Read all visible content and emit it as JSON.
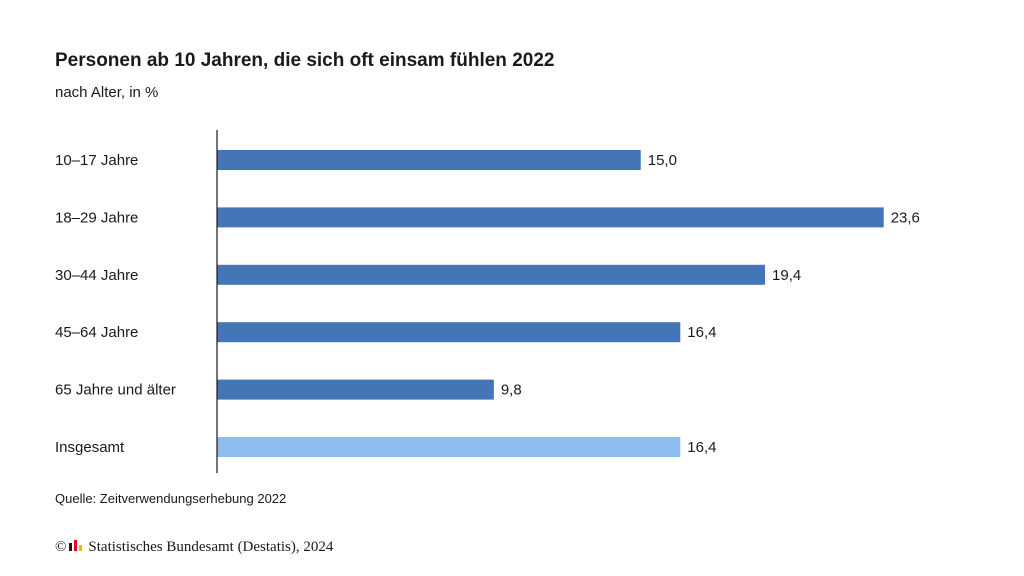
{
  "chart_data": {
    "type": "bar",
    "orientation": "horizontal",
    "title": "Personen ab 10 Jahren, die sich oft einsam fühlen 2022",
    "subtitle": "nach Alter, in %",
    "categories": [
      "10–17 Jahre",
      "18–29 Jahre",
      "30–44 Jahre",
      "45–64 Jahre",
      "65 Jahre und älter",
      "Insgesamt"
    ],
    "values": [
      15.0,
      23.6,
      19.4,
      16.4,
      9.8,
      16.4
    ],
    "value_labels": [
      "15,0",
      "23,6",
      "19,4",
      "16,4",
      "9,8",
      "16,4"
    ],
    "bar_colors": [
      "#4375b7",
      "#4375b7",
      "#4375b7",
      "#4375b7",
      "#4375b7",
      "#8fbcf0"
    ],
    "xlim": [
      0,
      24
    ],
    "grid": false,
    "legend": "none"
  },
  "source": "Quelle: Zeitverwendungserhebung 2022",
  "copyright": {
    "symbol": "©",
    "text": "Statistisches Bundesamt (Destatis), 2024",
    "logo_icon": "destatis-logo-icon"
  }
}
